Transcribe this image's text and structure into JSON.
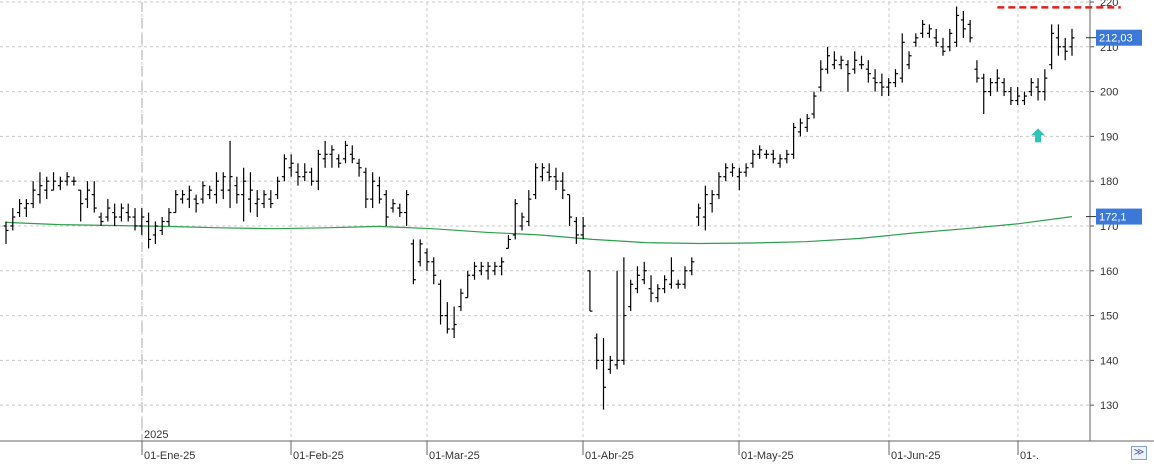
{
  "chart_data": {
    "type": "ohlc",
    "title": "",
    "ylim": [
      122,
      220
    ],
    "grid": true,
    "y_ticks": [
      130,
      140,
      150,
      160,
      170,
      180,
      190,
      200,
      210,
      220
    ],
    "x_tick_labels": [
      "01-Ene-25",
      "01-Feb-25",
      "01-Mar-25",
      "01-Abr-25",
      "01-May-25",
      "01-Jun-25",
      "01-."
    ],
    "year_label": "2025",
    "last_price_label": "212,03",
    "ma_label": "172,1",
    "colors": {
      "bars": "#000000",
      "ma_line": "#2e9e4e",
      "label_bg": "#3b78d8",
      "resistance": "#e0201c",
      "arrow": "#2ec4b8",
      "grid": "#c8c8c8"
    },
    "bars": [
      {
        "high": 171,
        "low": 166,
        "open": 170,
        "close": 169
      },
      {
        "high": 174,
        "low": 169,
        "open": 170,
        "close": 172
      },
      {
        "high": 176,
        "low": 172,
        "open": 173,
        "close": 175
      },
      {
        "high": 176,
        "low": 172,
        "open": 174,
        "close": 175
      },
      {
        "high": 180,
        "low": 174,
        "open": 175,
        "close": 178
      },
      {
        "high": 182,
        "low": 175,
        "open": 177,
        "close": 179
      },
      {
        "high": 181,
        "low": 176,
        "open": 178,
        "close": 180
      },
      {
        "high": 182,
        "low": 178,
        "open": 178,
        "close": 180
      },
      {
        "high": 181,
        "low": 178,
        "open": 179,
        "close": 180
      },
      {
        "high": 182,
        "low": 179,
        "open": 180,
        "close": 181
      },
      {
        "high": 181,
        "low": 179,
        "open": 180,
        "close": 180
      },
      {
        "high": 178,
        "low": 171,
        "open": 178,
        "close": 175
      },
      {
        "high": 180,
        "low": 174,
        "open": 176,
        "close": 178
      },
      {
        "high": 180,
        "low": 173,
        "open": 177,
        "close": 174
      },
      {
        "high": 173,
        "low": 170,
        "open": 172,
        "close": 171
      },
      {
        "high": 176,
        "low": 171,
        "open": 172,
        "close": 174
      },
      {
        "high": 175,
        "low": 170,
        "open": 173,
        "close": 172
      },
      {
        "high": 175,
        "low": 171,
        "open": 172,
        "close": 174
      },
      {
        "high": 175,
        "low": 171,
        "open": 173,
        "close": 172
      },
      {
        "high": 174,
        "low": 169,
        "open": 172,
        "close": 170
      },
      {
        "high": 174,
        "low": 168,
        "open": 170,
        "close": 172
      },
      {
        "high": 173,
        "low": 165,
        "open": 171,
        "close": 167
      },
      {
        "high": 171,
        "low": 166,
        "open": 168,
        "close": 170
      },
      {
        "high": 172,
        "low": 168,
        "open": 169,
        "close": 171
      },
      {
        "high": 174,
        "low": 170,
        "open": 171,
        "close": 173
      },
      {
        "high": 178,
        "low": 173,
        "open": 173,
        "close": 177
      },
      {
        "high": 178,
        "low": 175,
        "open": 176,
        "close": 177
      },
      {
        "high": 179,
        "low": 174,
        "open": 176,
        "close": 178
      },
      {
        "high": 177,
        "low": 173,
        "open": 176,
        "close": 175
      },
      {
        "high": 180,
        "low": 175,
        "open": 176,
        "close": 179
      },
      {
        "high": 179,
        "low": 176,
        "open": 177,
        "close": 178
      },
      {
        "high": 182,
        "low": 175,
        "open": 177,
        "close": 180
      },
      {
        "high": 182,
        "low": 176,
        "open": 178,
        "close": 181
      },
      {
        "high": 189,
        "low": 174,
        "open": 178,
        "close": 181
      },
      {
        "high": 181,
        "low": 175,
        "open": 179,
        "close": 177
      },
      {
        "high": 183,
        "low": 171,
        "open": 177,
        "close": 180
      },
      {
        "high": 182,
        "low": 173,
        "open": 176,
        "close": 178
      },
      {
        "high": 178,
        "low": 172,
        "open": 175,
        "close": 176
      },
      {
        "high": 178,
        "low": 174,
        "open": 175,
        "close": 177
      },
      {
        "high": 178,
        "low": 174,
        "open": 176,
        "close": 175
      },
      {
        "high": 181,
        "low": 176,
        "open": 177,
        "close": 180
      },
      {
        "high": 186,
        "low": 180,
        "open": 181,
        "close": 185
      },
      {
        "high": 186,
        "low": 181,
        "open": 183,
        "close": 184
      },
      {
        "high": 184,
        "low": 179,
        "open": 182,
        "close": 181
      },
      {
        "high": 184,
        "low": 180,
        "open": 181,
        "close": 182
      },
      {
        "high": 183,
        "low": 179,
        "open": 182,
        "close": 180
      },
      {
        "high": 187,
        "low": 178,
        "open": 180,
        "close": 186
      },
      {
        "high": 189,
        "low": 183,
        "open": 185,
        "close": 186
      },
      {
        "high": 188,
        "low": 183,
        "open": 186,
        "close": 187
      },
      {
        "high": 186,
        "low": 183,
        "open": 185,
        "close": 184
      },
      {
        "high": 189,
        "low": 184,
        "open": 185,
        "close": 188
      },
      {
        "high": 188,
        "low": 184,
        "open": 186,
        "close": 185
      },
      {
        "high": 185,
        "low": 181,
        "open": 184,
        "close": 183
      },
      {
        "high": 183,
        "low": 174,
        "open": 182,
        "close": 176
      },
      {
        "high": 182,
        "low": 174,
        "open": 176,
        "close": 180
      },
      {
        "high": 181,
        "low": 175,
        "open": 179,
        "close": 176
      },
      {
        "high": 178,
        "low": 170,
        "open": 177,
        "close": 172
      },
      {
        "high": 176,
        "low": 173,
        "open": 174,
        "close": 175
      },
      {
        "high": 175,
        "low": 172,
        "open": 174,
        "close": 173
      },
      {
        "high": 178,
        "low": 170,
        "open": 173,
        "close": 177
      },
      {
        "high": 167,
        "low": 157,
        "open": 166,
        "close": 158
      },
      {
        "high": 167,
        "low": 161,
        "open": 162,
        "close": 166
      },
      {
        "high": 165,
        "low": 160,
        "open": 164,
        "close": 162
      },
      {
        "high": 163,
        "low": 157,
        "open": 162,
        "close": 159
      },
      {
        "high": 158,
        "low": 148,
        "open": 157,
        "close": 150
      },
      {
        "high": 153,
        "low": 146,
        "open": 150,
        "close": 147
      },
      {
        "high": 152,
        "low": 145,
        "open": 147,
        "close": 148
      },
      {
        "high": 156,
        "low": 151,
        "open": 152,
        "close": 155
      },
      {
        "high": 160,
        "low": 154,
        "open": 154,
        "close": 159
      },
      {
        "high": 162,
        "low": 158,
        "open": 159,
        "close": 161
      },
      {
        "high": 162,
        "low": 159,
        "open": 160,
        "close": 161
      },
      {
        "high": 162,
        "low": 158,
        "open": 160,
        "close": 161
      },
      {
        "high": 162,
        "low": 159,
        "open": 160,
        "close": 161
      },
      {
        "high": 163,
        "low": 159,
        "open": 161,
        "close": 162
      },
      {
        "high": 168,
        "low": 165,
        "open": 165,
        "close": 167
      },
      {
        "high": 176,
        "low": 167,
        "open": 168,
        "close": 175
      },
      {
        "high": 173,
        "low": 169,
        "open": 170,
        "close": 172
      },
      {
        "high": 178,
        "low": 170,
        "open": 171,
        "close": 176
      },
      {
        "high": 184,
        "low": 176,
        "open": 177,
        "close": 183
      },
      {
        "high": 184,
        "low": 180,
        "open": 181,
        "close": 183
      },
      {
        "high": 184,
        "low": 180,
        "open": 182,
        "close": 181
      },
      {
        "high": 183,
        "low": 178,
        "open": 181,
        "close": 180
      },
      {
        "high": 182,
        "low": 176,
        "open": 180,
        "close": 178
      },
      {
        "high": 177,
        "low": 170,
        "open": 177,
        "close": 172
      },
      {
        "high": 172,
        "low": 166,
        "open": 171,
        "close": 168
      },
      {
        "high": 172,
        "low": 167,
        "open": 168,
        "close": 170
      },
      {
        "high": 160,
        "low": 151,
        "open": 160,
        "close": 151
      },
      {
        "high": 146,
        "low": 138,
        "open": 145,
        "close": 140
      },
      {
        "high": 145,
        "low": 129,
        "open": 140,
        "close": 134
      },
      {
        "high": 141,
        "low": 137,
        "open": 138,
        "close": 140
      },
      {
        "high": 160,
        "low": 138,
        "open": 139,
        "close": 140
      },
      {
        "high": 163,
        "low": 139,
        "open": 140,
        "close": 150
      },
      {
        "high": 158,
        "low": 151,
        "open": 152,
        "close": 157
      },
      {
        "high": 161,
        "low": 155,
        "open": 156,
        "close": 159
      },
      {
        "high": 162,
        "low": 157,
        "open": 158,
        "close": 160
      },
      {
        "high": 159,
        "low": 153,
        "open": 156,
        "close": 155
      },
      {
        "high": 157,
        "low": 153,
        "open": 154,
        "close": 156
      },
      {
        "high": 159,
        "low": 155,
        "open": 156,
        "close": 158
      },
      {
        "high": 163,
        "low": 156,
        "open": 157,
        "close": 160
      },
      {
        "high": 158,
        "low": 156,
        "open": 157,
        "close": 157
      },
      {
        "high": 161,
        "low": 156,
        "open": 157,
        "close": 160
      },
      {
        "high": 163,
        "low": 159,
        "open": 160,
        "close": 162
      },
      {
        "high": 175,
        "low": 170,
        "open": 172,
        "close": 174
      },
      {
        "high": 179,
        "low": 169,
        "open": 172,
        "close": 177
      },
      {
        "high": 178,
        "low": 173,
        "open": 175,
        "close": 177
      },
      {
        "high": 182,
        "low": 176,
        "open": 177,
        "close": 181
      },
      {
        "high": 184,
        "low": 180,
        "open": 181,
        "close": 183
      },
      {
        "high": 184,
        "low": 181,
        "open": 182,
        "close": 183
      },
      {
        "high": 183,
        "low": 178,
        "open": 181,
        "close": 182
      },
      {
        "high": 184,
        "low": 181,
        "open": 182,
        "close": 183
      },
      {
        "high": 187,
        "low": 183,
        "open": 184,
        "close": 186
      },
      {
        "high": 188,
        "low": 185,
        "open": 186,
        "close": 187
      },
      {
        "high": 187,
        "low": 185,
        "open": 186,
        "close": 186
      },
      {
        "high": 187,
        "low": 184,
        "open": 186,
        "close": 185
      },
      {
        "high": 186,
        "low": 183,
        "open": 184,
        "close": 185
      },
      {
        "high": 187,
        "low": 184,
        "open": 185,
        "close": 186
      },
      {
        "high": 193,
        "low": 185,
        "open": 186,
        "close": 192
      },
      {
        "high": 194,
        "low": 190,
        "open": 191,
        "close": 193
      },
      {
        "high": 195,
        "low": 191,
        "open": 192,
        "close": 194
      },
      {
        "high": 200,
        "low": 194,
        "open": 195,
        "close": 199
      },
      {
        "high": 207,
        "low": 200,
        "open": 201,
        "close": 205
      },
      {
        "high": 210,
        "low": 204,
        "open": 205,
        "close": 208
      },
      {
        "high": 209,
        "low": 205,
        "open": 206,
        "close": 207
      },
      {
        "high": 208,
        "low": 205,
        "open": 206,
        "close": 207
      },
      {
        "high": 207,
        "low": 200,
        "open": 206,
        "close": 204
      },
      {
        "high": 209,
        "low": 204,
        "open": 205,
        "close": 207
      },
      {
        "high": 208,
        "low": 205,
        "open": 206,
        "close": 206
      },
      {
        "high": 207,
        "low": 202,
        "open": 205,
        "close": 204
      },
      {
        "high": 205,
        "low": 200,
        "open": 203,
        "close": 202
      },
      {
        "high": 204,
        "low": 199,
        "open": 202,
        "close": 201
      },
      {
        "high": 203,
        "low": 199,
        "open": 201,
        "close": 202
      },
      {
        "high": 205,
        "low": 201,
        "open": 202,
        "close": 204
      },
      {
        "high": 213,
        "low": 202,
        "open": 203,
        "close": 211
      },
      {
        "high": 209,
        "low": 205,
        "open": 206,
        "close": 208
      },
      {
        "high": 213,
        "low": 210,
        "open": 211,
        "close": 212
      },
      {
        "high": 216,
        "low": 212,
        "open": 213,
        "close": 215
      },
      {
        "high": 215,
        "low": 212,
        "open": 213,
        "close": 214
      },
      {
        "high": 214,
        "low": 210,
        "open": 212,
        "close": 211
      },
      {
        "high": 212,
        "low": 208,
        "open": 210,
        "close": 209
      },
      {
        "high": 214,
        "low": 209,
        "open": 210,
        "close": 213
      },
      {
        "high": 219,
        "low": 210,
        "open": 211,
        "close": 217
      },
      {
        "high": 218,
        "low": 212,
        "open": 216,
        "close": 214
      },
      {
        "high": 216,
        "low": 211,
        "open": 215,
        "close": 212
      },
      {
        "high": 207,
        "low": 202,
        "open": 205,
        "close": 203
      },
      {
        "high": 204,
        "low": 195,
        "open": 203,
        "close": 200
      },
      {
        "high": 203,
        "low": 199,
        "open": 200,
        "close": 202
      },
      {
        "high": 205,
        "low": 200,
        "open": 202,
        "close": 203
      },
      {
        "high": 203,
        "low": 199,
        "open": 202,
        "close": 200
      },
      {
        "high": 201,
        "low": 197,
        "open": 200,
        "close": 198
      },
      {
        "high": 201,
        "low": 197,
        "open": 198,
        "close": 199
      },
      {
        "high": 200,
        "low": 197,
        "open": 198,
        "close": 199
      },
      {
        "high": 203,
        "low": 199,
        "open": 200,
        "close": 202
      },
      {
        "high": 203,
        "low": 198,
        "open": 201,
        "close": 200
      },
      {
        "high": 205,
        "low": 198,
        "open": 200,
        "close": 203
      },
      {
        "high": 215,
        "low": 205,
        "open": 206,
        "close": 213
      },
      {
        "high": 215,
        "low": 208,
        "open": 212,
        "close": 210
      },
      {
        "high": 212,
        "low": 207,
        "open": 210,
        "close": 209
      },
      {
        "high": 214,
        "low": 208,
        "open": 210,
        "close": 212
      }
    ],
    "moving_average": [
      {
        "x": 0,
        "y": 170.8
      },
      {
        "x": 0.05,
        "y": 170.3
      },
      {
        "x": 0.1,
        "y": 170.1
      },
      {
        "x": 0.15,
        "y": 169.9
      },
      {
        "x": 0.2,
        "y": 169.6
      },
      {
        "x": 0.25,
        "y": 169.4
      },
      {
        "x": 0.3,
        "y": 169.6
      },
      {
        "x": 0.35,
        "y": 169.9
      },
      {
        "x": 0.4,
        "y": 169.4
      },
      {
        "x": 0.45,
        "y": 168.6
      },
      {
        "x": 0.5,
        "y": 168.0
      },
      {
        "x": 0.55,
        "y": 167.0
      },
      {
        "x": 0.6,
        "y": 166.3
      },
      {
        "x": 0.65,
        "y": 166.1
      },
      {
        "x": 0.7,
        "y": 166.2
      },
      {
        "x": 0.75,
        "y": 166.5
      },
      {
        "x": 0.8,
        "y": 167.2
      },
      {
        "x": 0.85,
        "y": 168.4
      },
      {
        "x": 0.9,
        "y": 169.4
      },
      {
        "x": 0.95,
        "y": 170.5
      },
      {
        "x": 1,
        "y": 172.1
      }
    ],
    "resistance_level": 218.8,
    "arrow_marker_value": 190
  }
}
